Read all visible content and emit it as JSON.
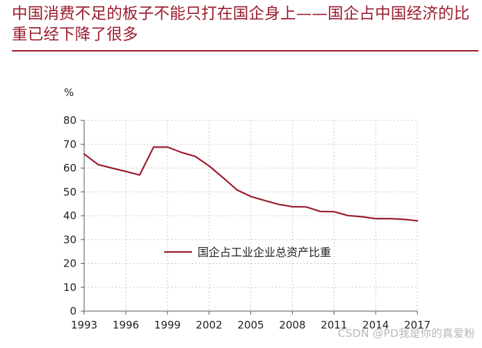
{
  "title": "中国消费不足的板子不能只打在国企身上——国企占中国经济的比重已经下降了很多",
  "watermark": "CSDN @PD我是你的真爱粉",
  "colors": {
    "accent": "#9b1c2e",
    "series": "#9b1c2e",
    "grid": "#c8c8c8",
    "axis": "#555555"
  },
  "chart_data": {
    "type": "line",
    "title": "",
    "xlabel": "",
    "ylabel": "%",
    "xlim": [
      1993,
      2017
    ],
    "ylim": [
      0,
      80
    ],
    "x_ticks": [
      "1993",
      "1996",
      "1999",
      "2002",
      "2005",
      "2008",
      "2011",
      "2014",
      "2017"
    ],
    "y_ticks": [
      "0",
      "10",
      "20",
      "30",
      "40",
      "50",
      "60",
      "70",
      "80"
    ],
    "grid": true,
    "legend_position": "center",
    "series": [
      {
        "name": "国企占工业企业总资产比重",
        "color": "#9b1c2e",
        "x": [
          1993,
          1994,
          1995,
          1996,
          1997,
          1998,
          1999,
          2000,
          2001,
          2002,
          2003,
          2004,
          2005,
          2006,
          2007,
          2008,
          2009,
          2010,
          2011,
          2012,
          2013,
          2014,
          2015,
          2016,
          2017
        ],
        "y": [
          65.9,
          61.5,
          60.0,
          58.6,
          57.1,
          68.8,
          68.8,
          66.6,
          64.9,
          60.9,
          56.0,
          50.9,
          48.1,
          46.4,
          44.8,
          43.8,
          43.7,
          41.8,
          41.7,
          40.1,
          39.6,
          38.8,
          38.8,
          38.5,
          37.9
        ]
      }
    ]
  }
}
